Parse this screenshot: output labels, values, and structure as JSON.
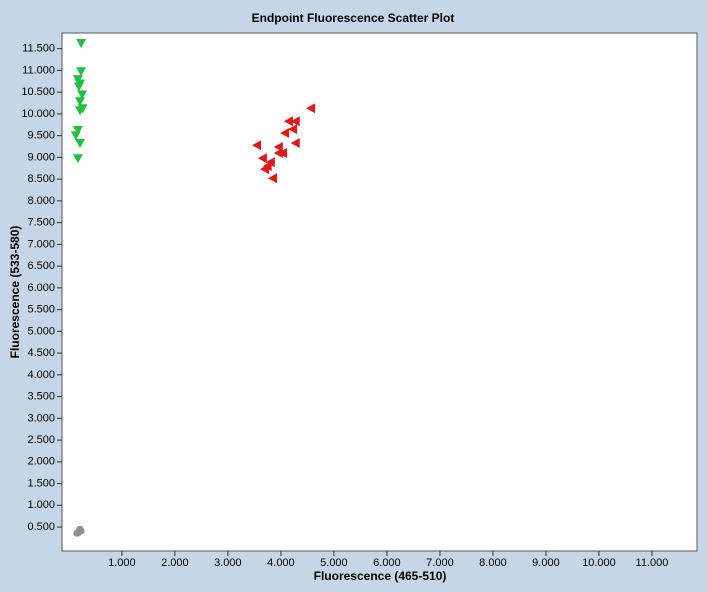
{
  "chart_data": {
    "type": "scatter",
    "title": "Endpoint Fluorescence Scatter Plot",
    "x_label": "Fluorescence (465-510)",
    "y_label": "Fluorescence (533-580)",
    "xlim": [
      -0.13,
      11.85
    ],
    "ylim": [
      -0.05,
      11.86
    ],
    "xticks": [
      {
        "value": 1,
        "label": "1.000"
      },
      {
        "value": 2,
        "label": "2.000"
      },
      {
        "value": 3,
        "label": "3.000"
      },
      {
        "value": 4,
        "label": "4.000"
      },
      {
        "value": 5,
        "label": "5.000"
      },
      {
        "value": 6,
        "label": "6.000"
      },
      {
        "value": 7,
        "label": "7.000"
      },
      {
        "value": 8,
        "label": "8.000"
      },
      {
        "value": 9,
        "label": "9.000"
      },
      {
        "value": 10,
        "label": "10.000"
      },
      {
        "value": 11,
        "label": "11.000"
      }
    ],
    "yticks": [
      {
        "value": 0.5,
        "label": "0.500"
      },
      {
        "value": 1,
        "label": "1.000"
      },
      {
        "value": 1.5,
        "label": "1.500"
      },
      {
        "value": 2,
        "label": "2.000"
      },
      {
        "value": 2.5,
        "label": "2.500"
      },
      {
        "value": 3,
        "label": "3.000"
      },
      {
        "value": 3.5,
        "label": "3.500"
      },
      {
        "value": 4,
        "label": "4.000"
      },
      {
        "value": 4.5,
        "label": "4.500"
      },
      {
        "value": 5,
        "label": "5.000"
      },
      {
        "value": 5.5,
        "label": "5.500"
      },
      {
        "value": 6,
        "label": "6.000"
      },
      {
        "value": 6.5,
        "label": "6.500"
      },
      {
        "value": 7,
        "label": "7.000"
      },
      {
        "value": 7.5,
        "label": "7.500"
      },
      {
        "value": 8,
        "label": "8.000"
      },
      {
        "value": 8.5,
        "label": "8.500"
      },
      {
        "value": 9,
        "label": "9.000"
      },
      {
        "value": 9.5,
        "label": "9.500"
      },
      {
        "value": 10,
        "label": "10.000"
      },
      {
        "value": 10.5,
        "label": "10.500"
      },
      {
        "value": 11,
        "label": "11.000"
      },
      {
        "value": 11.5,
        "label": "11.500"
      }
    ],
    "grid": false,
    "series": [
      {
        "color": "#22c040",
        "marker": "triangle-down",
        "x": [
          0.23,
          0.23,
          0.17,
          0.21,
          0.19,
          0.25,
          0.21,
          0.26,
          0.21,
          0.17,
          0.13,
          0.21,
          0.17
        ],
        "y": [
          11.63,
          10.98,
          10.8,
          10.7,
          10.63,
          10.45,
          10.29,
          10.13,
          10.08,
          9.63,
          9.51,
          9.33,
          8.98
        ]
      },
      {
        "color": "#e01818",
        "marker": "triangle-left",
        "x": [
          4.57,
          4.15,
          4.28,
          4.23,
          4.08,
          3.55,
          4.28,
          3.96,
          4.04,
          3.96,
          3.66,
          3.81,
          3.75,
          3.7,
          3.85
        ],
        "y": [
          10.13,
          9.83,
          9.83,
          9.65,
          9.56,
          9.28,
          9.33,
          9.24,
          9.1,
          9.1,
          8.98,
          8.89,
          8.8,
          8.73,
          8.52
        ]
      },
      {
        "color": "#909090",
        "marker": "circle",
        "x": [
          0.21,
          0.17,
          0.23,
          0.15,
          0.19
        ],
        "y": [
          0.45,
          0.36,
          0.41,
          0.36,
          0.41
        ]
      }
    ]
  }
}
